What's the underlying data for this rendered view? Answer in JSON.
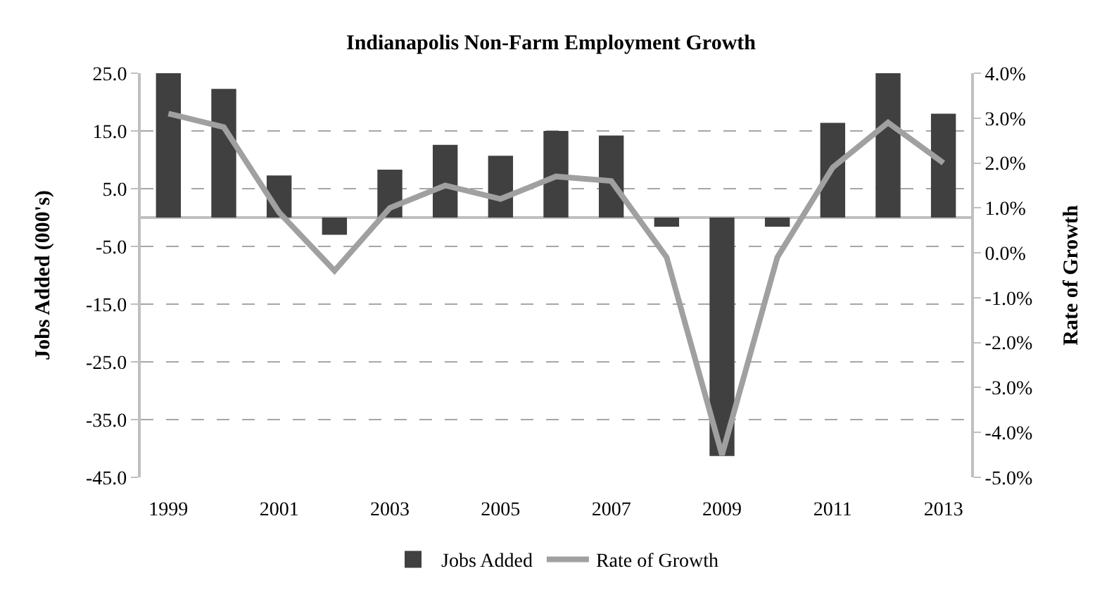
{
  "chart_data": {
    "type": "bar",
    "title": "Indianapolis Non-Farm Employment Growth",
    "ylabel": "Jobs Added (000's)",
    "y2label": "Rate of Growth",
    "categories": [
      "1999",
      null,
      "2001",
      null,
      "2003",
      null,
      "2005",
      null,
      "2007",
      null,
      "2009",
      null,
      "2011",
      null,
      "2013"
    ],
    "series": [
      {
        "name": "Jobs Added",
        "color": "#404040",
        "values": [
          25.0,
          22.3,
          7.3,
          -3.0,
          8.3,
          12.6,
          10.7,
          15.0,
          14.2,
          -1.6,
          -41.3,
          -1.6,
          16.4,
          25.0,
          18.0
        ]
      },
      {
        "name": "Rate of Growth",
        "type": "line",
        "axis": "y2",
        "color": "#a0a0a0",
        "values": [
          3.1,
          2.8,
          0.9,
          -0.4,
          1.0,
          1.5,
          1.2,
          1.7,
          1.6,
          -0.1,
          -4.5,
          -0.1,
          1.9,
          2.9,
          2.0
        ]
      }
    ],
    "ylim": [
      -45,
      25
    ],
    "yticks": [
      {
        "value": -45,
        "label": "-45.0"
      },
      {
        "value": -35,
        "label": "-35.0"
      },
      {
        "value": -25,
        "label": "-25.0"
      },
      {
        "value": -15,
        "label": "-15.0"
      },
      {
        "value": -5,
        "label": "-5.0"
      },
      {
        "value": 5,
        "label": "5.0"
      },
      {
        "value": 15,
        "label": "15.0"
      },
      {
        "value": 25,
        "label": "25.0"
      }
    ],
    "y2lim": [
      -5,
      4
    ],
    "y2ticks": [
      {
        "value": -5,
        "label": "-5.0%"
      },
      {
        "value": -4,
        "label": "-4.0%"
      },
      {
        "value": -3,
        "label": "-3.0%"
      },
      {
        "value": -2,
        "label": "-2.0%"
      },
      {
        "value": -1,
        "label": "-1.0%"
      },
      {
        "value": 0,
        "label": "0.0%"
      },
      {
        "value": 1,
        "label": "1.0%"
      },
      {
        "value": 2,
        "label": "2.0%"
      },
      {
        "value": 3,
        "label": "3.0%"
      },
      {
        "value": 4,
        "label": "4.0%"
      }
    ],
    "grid": "y",
    "legend": "bottom",
    "line_style": "solid"
  }
}
